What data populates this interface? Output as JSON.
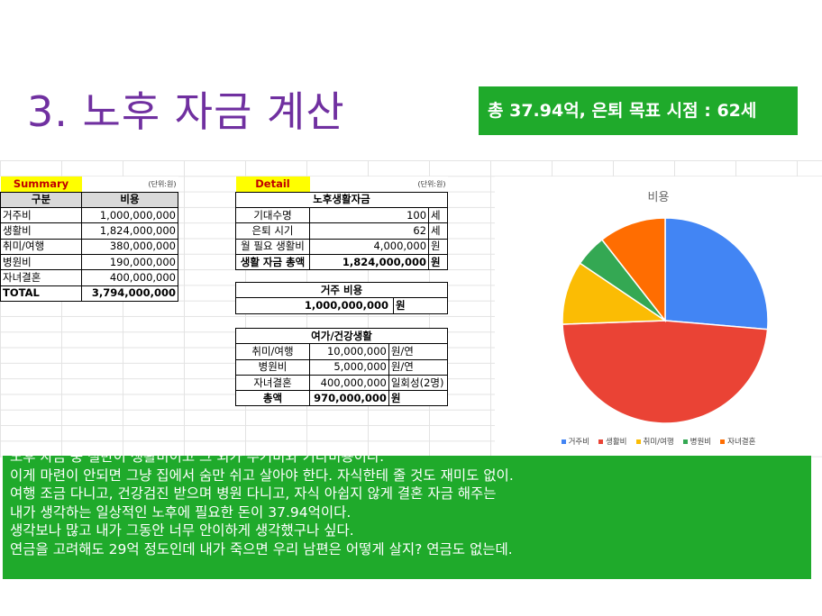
{
  "title": "3. 노후 자금 계산",
  "total_banner": "총 37.94억, 은퇴 목표 시점 : 62세",
  "summary": {
    "header": "Summary",
    "unit": "(단위:원)",
    "col_headers": [
      "구분",
      "비용"
    ],
    "rows": [
      {
        "label": "거주비",
        "value": "1,000,000,000"
      },
      {
        "label": "생활비",
        "value": "1,824,000,000"
      },
      {
        "label": "취미/여행",
        "value": "380,000,000"
      },
      {
        "label": "병원비",
        "value": "190,000,000"
      },
      {
        "label": "자녀결혼",
        "value": "400,000,000"
      }
    ],
    "total_label": "TOTAL",
    "total_value": "3,794,000,000"
  },
  "detail": {
    "header": "Detail",
    "unit": "(단위:원)",
    "living": {
      "title": "노후생활자금",
      "rows": [
        {
          "label": "기대수명",
          "value": "100",
          "unit": "세"
        },
        {
          "label": "은퇴 시기",
          "value": "62",
          "unit": "세"
        },
        {
          "label": "월 필요 생활비",
          "value": "4,000,000",
          "unit": "원"
        },
        {
          "label": "생활 자금 총액",
          "value": "1,824,000,000",
          "unit": "원"
        }
      ]
    },
    "housing": {
      "title": "거주 비용",
      "value": "1,000,000,000",
      "unit": "원"
    },
    "leisure": {
      "title": "여가/건강생활",
      "rows": [
        {
          "label": "취미/여행",
          "value": "10,000,000",
          "unit": "원/연"
        },
        {
          "label": "병원비",
          "value": "5,000,000",
          "unit": "원/연"
        },
        {
          "label": "자녀결혼",
          "value": "400,000,000",
          "unit": "일회성(2명)"
        }
      ],
      "total_label": "총액",
      "total_value": "970,000,000",
      "total_unit": "원"
    }
  },
  "chart_data": {
    "type": "pie",
    "title": "비용",
    "categories": [
      "거주비",
      "생활비",
      "취미/여행",
      "병원비",
      "자녀결혼"
    ],
    "values": [
      1000000000,
      1824000000,
      380000000,
      190000000,
      400000000
    ],
    "colors": [
      "#4285f4",
      "#ea4335",
      "#fbbc04",
      "#34a853",
      "#ff6d01"
    ],
    "legend_position": "bottom"
  },
  "comment_lines": [
    "노후 자금 중 절반이 생활비이고 그 외가 주거비와 기타비용이다.",
    "이게 마련이 안되면 그냥 집에서 숨만 쉬고 살아야 한다. 자식한테 줄 것도 재미도 없이.",
    "여행 조금 다니고, 건강검진 받으며 병원 다니고, 자식 아쉽지 않게 결혼 자금 해주는",
    "내가 생각하는 일상적인 노후에 필요한 돈이 37.94억이다.",
    "생각보나 많고 내가 그동안 너무 안이하게 생각했구나 싶다.",
    "연금을 고려해도 29억 정도인데 내가 죽으면 우리 남편은 어떻게 살지? 연금도 없는데."
  ]
}
